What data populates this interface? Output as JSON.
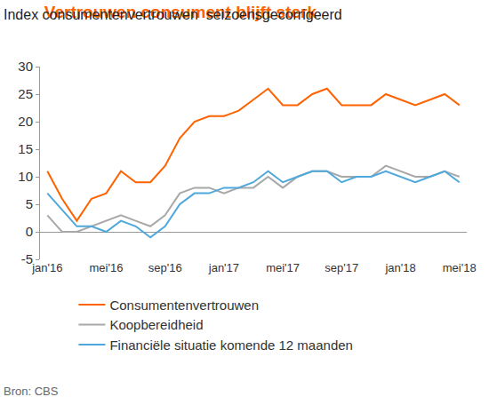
{
  "chart_data": {
    "type": "line",
    "title": "Vertrouwen consument blijft sterk",
    "subtitle": "Index consumentenvertrouwen  seizoensgecorrigeerd",
    "source": "Bron: CBS",
    "categories": [
      "jan'16",
      null,
      null,
      null,
      "mei'16",
      null,
      null,
      null,
      "sep'16",
      null,
      null,
      null,
      "jan'17",
      null,
      null,
      null,
      "mei'17",
      null,
      null,
      null,
      "sep'17",
      null,
      null,
      null,
      "jan'18",
      null,
      null,
      null,
      "mei'18"
    ],
    "series": [
      {
        "name": "Consumentenvertrouwen",
        "color": "#ff6200",
        "values": [
          11,
          6,
          2,
          6,
          7,
          11,
          9,
          9,
          12,
          17,
          20,
          21,
          21,
          22,
          24,
          26,
          23,
          23,
          25,
          26,
          23,
          23,
          23,
          25,
          24,
          23,
          24,
          25,
          23
        ]
      },
      {
        "name": "Koopbereidheid",
        "color": "#a8a8a8",
        "values": [
          3,
          0,
          0,
          1,
          2,
          3,
          2,
          1,
          3,
          7,
          8,
          8,
          7,
          8,
          8,
          10,
          8,
          10,
          11,
          11,
          10,
          10,
          10,
          12,
          11,
          10,
          10,
          11,
          10
        ]
      },
      {
        "name": "Financiële situatie komende 12 maanden",
        "color": "#4fa8dc",
        "values": [
          7,
          4,
          1,
          1,
          0,
          2,
          1,
          -1,
          1,
          5,
          7,
          7,
          8,
          8,
          9,
          11,
          9,
          10,
          11,
          11,
          9,
          10,
          10,
          11,
          10,
          9,
          10,
          11,
          9
        ]
      }
    ],
    "ylim": [
      -5,
      30
    ],
    "yticks": [
      -5,
      0,
      5,
      10,
      15,
      20,
      25,
      30
    ],
    "grid": false,
    "legend": "bottom"
  }
}
